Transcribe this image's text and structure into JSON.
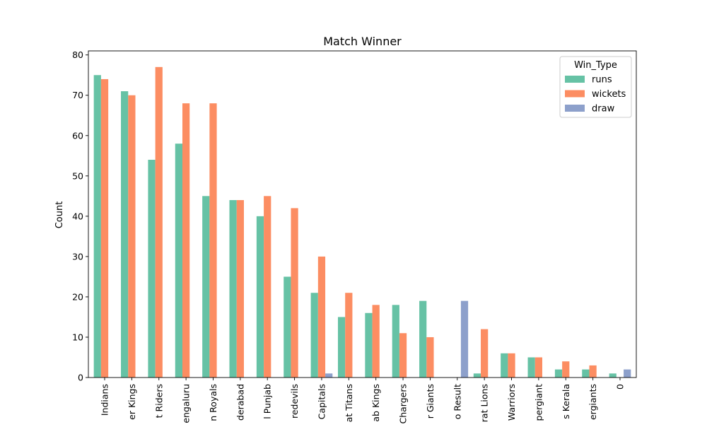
{
  "chart_data": {
    "type": "bar",
    "title": "Match Winner",
    "xlabel": "",
    "ylabel": "Count",
    "ylim": [
      0,
      81
    ],
    "yticks": [
      0,
      10,
      20,
      30,
      40,
      50,
      60,
      70,
      80
    ],
    "grid": false,
    "legend": {
      "title": "Win_Type",
      "placement": "top-right"
    },
    "categories": [
      "Indians",
      "er Kings",
      "t Riders",
      "engaluru",
      "n Royals",
      "derabad",
      "l Punjab",
      "redevils",
      "Capitals",
      "at Titans",
      "ab Kings",
      "Chargers",
      "r Giants",
      "o Result",
      "rat Lions",
      "Warriors",
      "pergiant",
      "s Kerala",
      "ergiants",
      "0"
    ],
    "series": [
      {
        "name": "runs",
        "color": "#66c2a5",
        "values": [
          75,
          71,
          54,
          58,
          45,
          44,
          40,
          25,
          21,
          15,
          16,
          18,
          19,
          0,
          1,
          6,
          5,
          2,
          2,
          1
        ]
      },
      {
        "name": "wickets",
        "color": "#fc8d62",
        "values": [
          74,
          70,
          77,
          68,
          68,
          44,
          45,
          42,
          30,
          21,
          18,
          11,
          10,
          0,
          12,
          6,
          5,
          4,
          3,
          0
        ]
      },
      {
        "name": "draw",
        "color": "#8da0cb",
        "values": [
          0,
          0,
          0,
          0,
          0,
          0,
          0,
          0,
          1,
          0,
          0,
          0,
          0,
          19,
          0,
          0,
          0,
          0,
          0,
          2
        ]
      }
    ]
  }
}
